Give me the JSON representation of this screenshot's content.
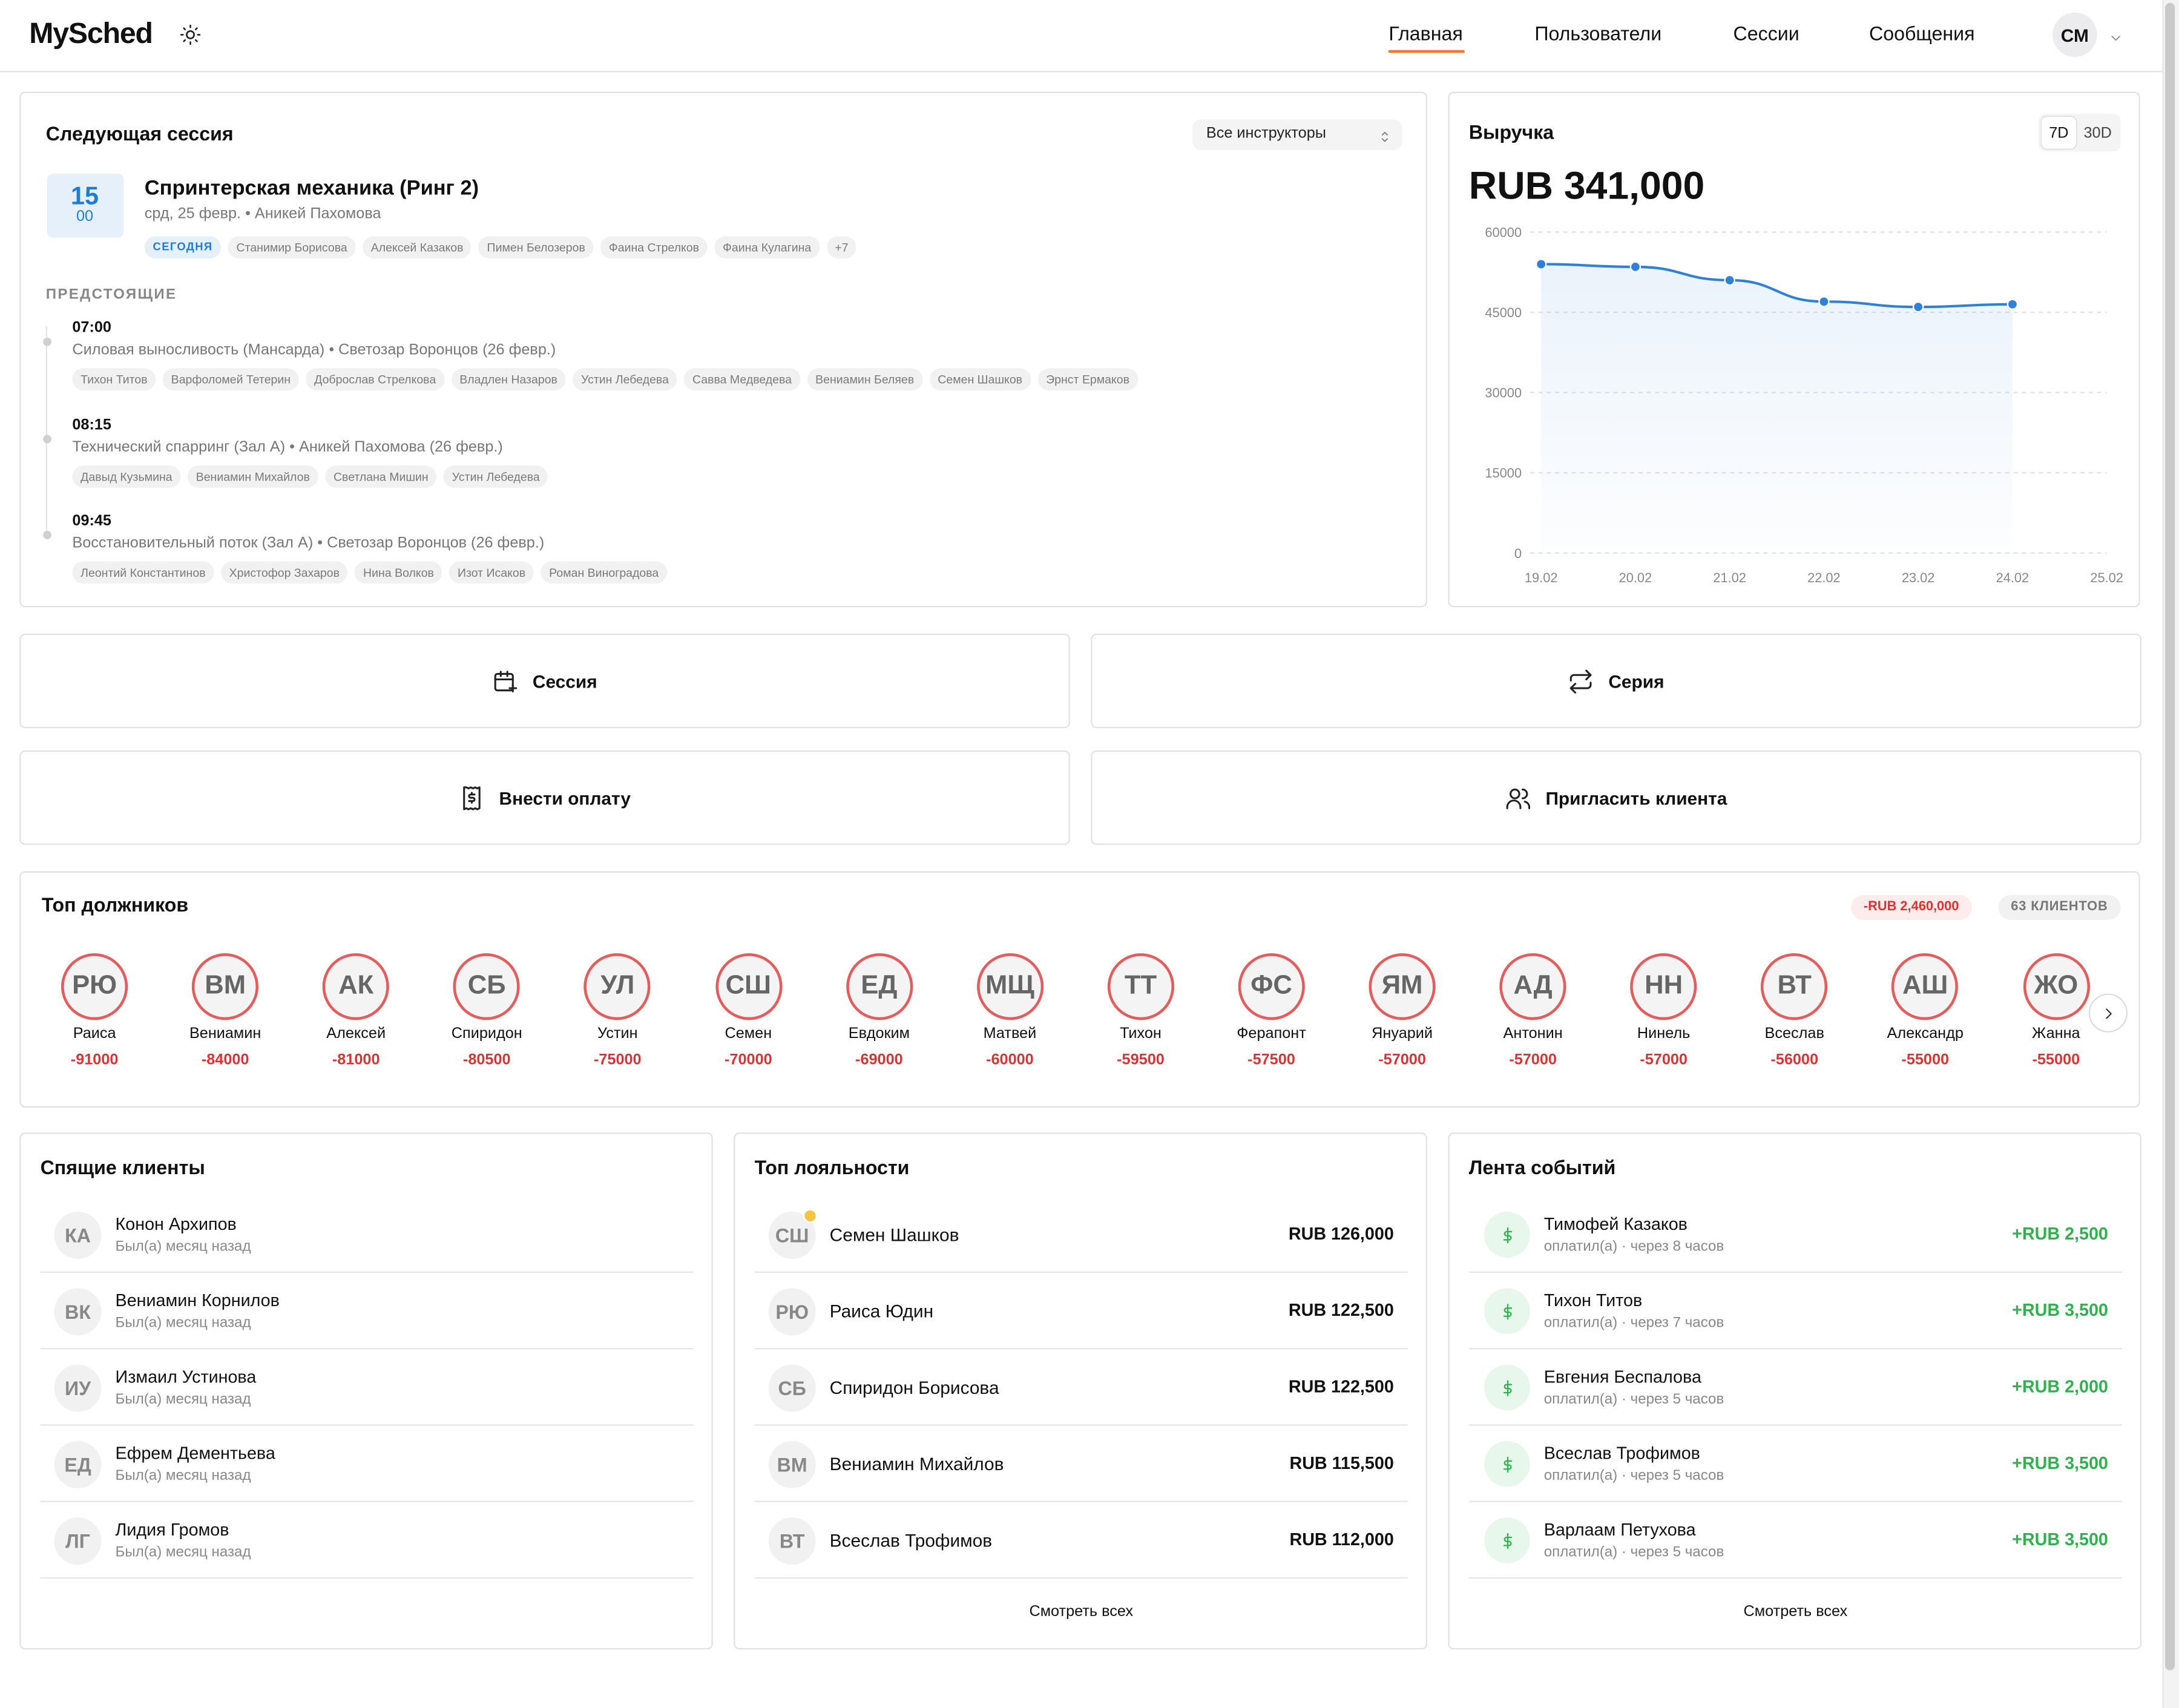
{
  "header": {
    "brand": "MySched",
    "nav": [
      "Главная",
      "Пользователи",
      "Сессии",
      "Сообщения"
    ],
    "avatar": "СМ"
  },
  "next_session": {
    "title": "Следующая сессия",
    "filter": "Все инструкторы",
    "day": "15",
    "time": "00",
    "name": "Спринтерская механика (Ринг 2)",
    "meta": "срд, 25 февр. • Аникей Пахомова",
    "badge": "СЕГОДНЯ",
    "attendees": [
      "Станимир Борисова",
      "Алексей Казаков",
      "Пимен Белозеров",
      "Фаина Стрелков",
      "Фаина Кулагина"
    ],
    "more": "+7",
    "upcoming_title": "ПРЕДСТОЯЩИЕ",
    "upcoming": [
      {
        "time": "07:00",
        "desc": "Силовая выносливость (Мансарда) • Светозар Воронцов (26 февр.)",
        "attendees": [
          "Тихон Титов",
          "Варфоломей Тетерин",
          "Доброслав Стрелкова",
          "Владлен Назаров",
          "Устин Лебедева",
          "Савва Медведева",
          "Вениамин Беляев",
          "Семен Шашков",
          "Эрнст Ермаков"
        ]
      },
      {
        "time": "08:15",
        "desc": "Технический спарринг (Зал А) • Аникей Пахомова (26 февр.)",
        "attendees": [
          "Давыд Кузьмина",
          "Вениамин Михайлов",
          "Светлана Мишин",
          "Устин Лебедева"
        ]
      },
      {
        "time": "09:45",
        "desc": "Восстановительный поток (Зал А) • Светозар Воронцов (26 февр.)",
        "attendees": [
          "Леонтий Константинов",
          "Христофор Захаров",
          "Нина Волков",
          "Изот Исаков",
          "Роман Виноградова"
        ]
      }
    ]
  },
  "revenue": {
    "title": "Выручка",
    "periods": [
      "7D",
      "30D"
    ],
    "total": "RUB 341,000",
    "chart": {
      "type": "line",
      "categories": [
        "19.02",
        "20.02",
        "21.02",
        "22.02",
        "23.02",
        "24.02",
        "25.02"
      ],
      "values": [
        54000,
        53500,
        51000,
        47000,
        46000,
        46500,
        null
      ],
      "ylim": [
        0,
        60000
      ],
      "yticks": [
        0,
        15000,
        30000,
        45000,
        60000
      ],
      "color": "#2f80d8",
      "grid": true
    }
  },
  "actions": [
    "Сессия",
    "Серия",
    "Внести оплату",
    "Пригласить клиента"
  ],
  "debtors": {
    "title": "Топ должников",
    "total": "-RUB 2,460,000",
    "count": "63 КЛИЕНТОВ",
    "items": [
      {
        "initials": "РЮ",
        "name": "Раиса",
        "amount": -91000
      },
      {
        "initials": "ВМ",
        "name": "Вениамин",
        "amount": -84000
      },
      {
        "initials": "АК",
        "name": "Алексей",
        "amount": -81000
      },
      {
        "initials": "СБ",
        "name": "Спиридон",
        "amount": -80500
      },
      {
        "initials": "УЛ",
        "name": "Устин",
        "amount": -75000
      },
      {
        "initials": "СШ",
        "name": "Семен",
        "amount": -70000
      },
      {
        "initials": "ЕД",
        "name": "Евдоким",
        "amount": -69000
      },
      {
        "initials": "МЩ",
        "name": "Матвей",
        "amount": -60000
      },
      {
        "initials": "ТТ",
        "name": "Тихон",
        "amount": -59500
      },
      {
        "initials": "ФС",
        "name": "Ферапонт",
        "amount": -57500
      },
      {
        "initials": "ЯМ",
        "name": "Януарий",
        "amount": -57000
      },
      {
        "initials": "АД",
        "name": "Антонин",
        "amount": -57000
      },
      {
        "initials": "НН",
        "name": "Нинель",
        "amount": -57000
      },
      {
        "initials": "ВТ",
        "name": "Всеслав",
        "amount": -56000
      },
      {
        "initials": "АШ",
        "name": "Александр",
        "amount": -55000
      },
      {
        "initials": "ЖО",
        "name": "Жанна",
        "amount": -55000
      }
    ]
  },
  "sleeping": {
    "title": "Спящие клиенты",
    "items": [
      {
        "initials": "КА",
        "name": "Конон Архипов",
        "status": "Был(а) месяц назад"
      },
      {
        "initials": "ВК",
        "name": "Вениамин Корнилов",
        "status": "Был(а) месяц назад"
      },
      {
        "initials": "ИУ",
        "name": "Измаил Устинова",
        "status": "Был(а) месяц назад"
      },
      {
        "initials": "ЕД",
        "name": "Ефрем Дементьева",
        "status": "Был(а) месяц назад"
      },
      {
        "initials": "ЛГ",
        "name": "Лидия Громов",
        "status": "Был(а) месяц назад"
      }
    ]
  },
  "loyalty": {
    "title": "Топ лояльности",
    "items": [
      {
        "initials": "СШ",
        "name": "Семен Шашков",
        "amount": "RUB 126,000"
      },
      {
        "initials": "РЮ",
        "name": "Раиса Юдин",
        "amount": "RUB 122,500"
      },
      {
        "initials": "СБ",
        "name": "Спиридон Борисова",
        "amount": "RUB 122,500"
      },
      {
        "initials": "ВМ",
        "name": "Вениамин Михайлов",
        "amount": "RUB 115,500"
      },
      {
        "initials": "ВТ",
        "name": "Всеслав Трофимов",
        "amount": "RUB 112,000"
      }
    ],
    "more": "Смотреть всех"
  },
  "feed": {
    "title": "Лента событий",
    "items": [
      {
        "name": "Тимофей Казаков",
        "desc": "оплатил(а) · через 8 часов",
        "amount": "+RUB 2,500"
      },
      {
        "name": "Тихон Титов",
        "desc": "оплатил(а) · через 7 часов",
        "amount": "+RUB 3,500"
      },
      {
        "name": "Евгения Беспалова",
        "desc": "оплатил(а) · через 5 часов",
        "amount": "+RUB 2,000"
      },
      {
        "name": "Всеслав Трофимов",
        "desc": "оплатил(а) · через 5 часов",
        "amount": "+RUB 3,500"
      },
      {
        "name": "Варлаам Петухова",
        "desc": "оплатил(а) · через 5 часов",
        "amount": "+RUB 3,500"
      }
    ],
    "more": "Смотреть всех"
  }
}
